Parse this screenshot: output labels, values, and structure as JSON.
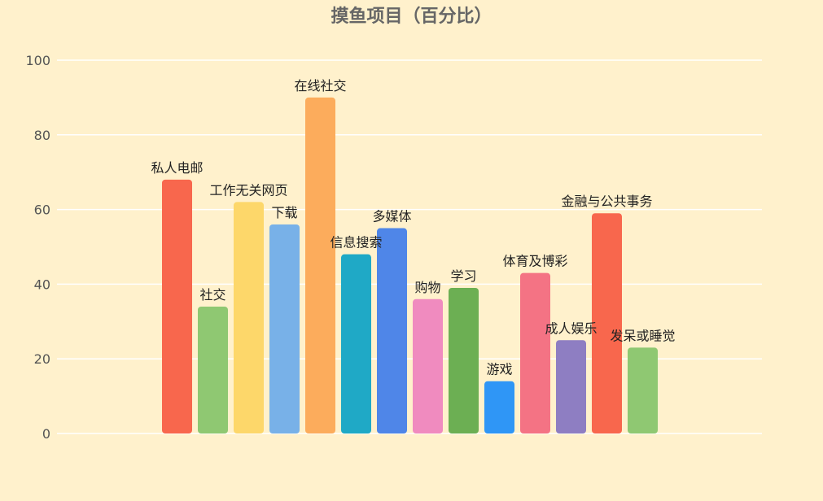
{
  "chart_data": {
    "type": "bar",
    "title": "摸鱼项目（百分比）",
    "xlabel": "",
    "ylabel": "",
    "ylim": [
      0,
      100
    ],
    "yticks": [
      0,
      20,
      40,
      60,
      80,
      100
    ],
    "grid": true,
    "categories": [
      "私人电邮",
      "社交",
      "工作无关网页",
      "下载",
      "在线社交",
      "信息搜索",
      "多媒体",
      "购物",
      "学习",
      "游戏",
      "体育及博彩",
      "成人娱乐",
      "金融与公共事务",
      "发呆或睡觉"
    ],
    "values": [
      68,
      34,
      62,
      56,
      90,
      48,
      55,
      36,
      39,
      14,
      43,
      25,
      59,
      23
    ],
    "colors": [
      "#f8674d",
      "#8fc872",
      "#fdd76a",
      "#78b1e8",
      "#fcac5c",
      "#1fa9c6",
      "#4f86e8",
      "#f08bbf",
      "#6caf53",
      "#2f96f6",
      "#f47384",
      "#8e7ec2",
      "#f8674d",
      "#8fc872"
    ],
    "axis_color": "#555555",
    "grid_color": "#ffffff",
    "label_color": "#222222"
  }
}
